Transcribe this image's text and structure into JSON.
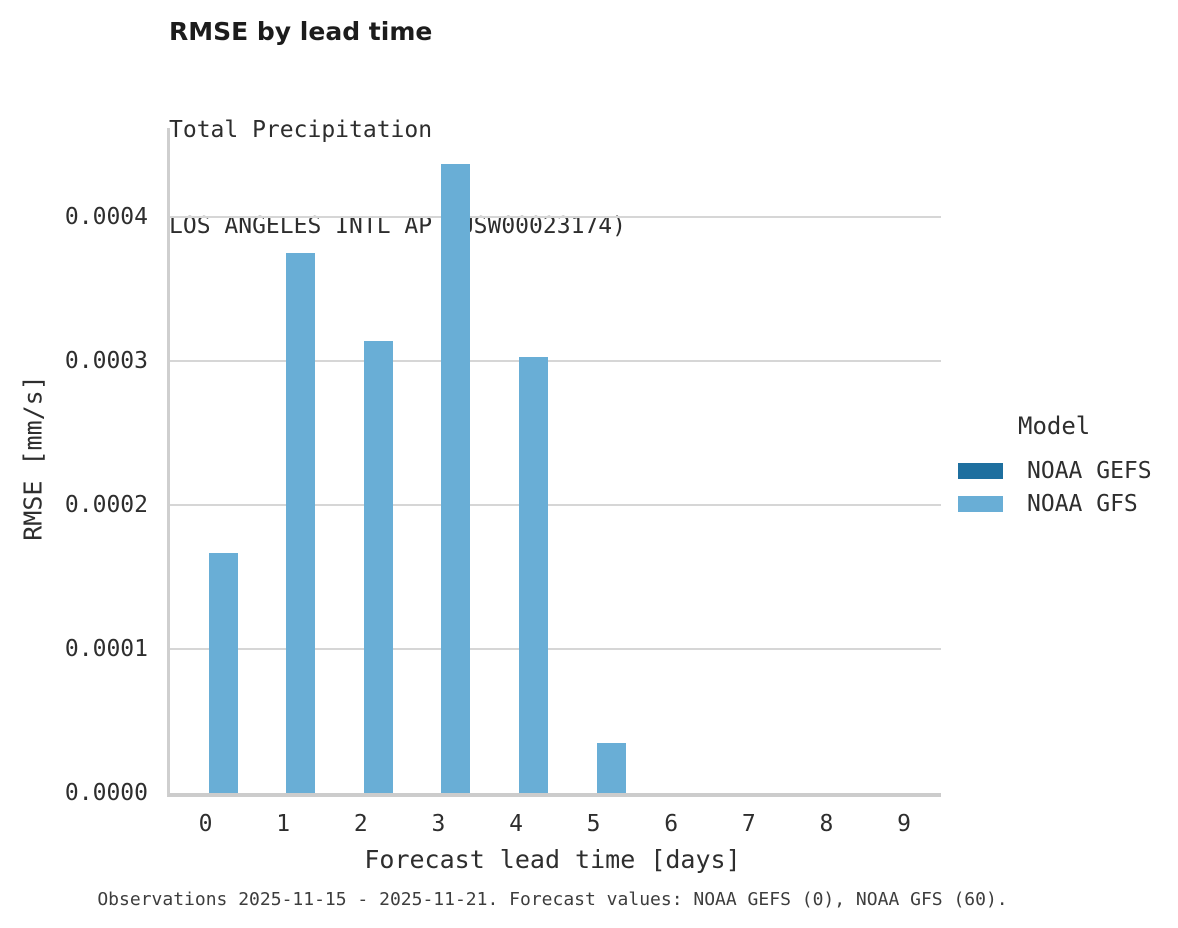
{
  "header": {
    "title": "RMSE by lead time",
    "subtitle_line1": "Total Precipitation",
    "subtitle_line2": "LOS ANGELES INTL AP (USW00023174)"
  },
  "chart_data": {
    "type": "bar",
    "categories": [
      "0",
      "1",
      "2",
      "3",
      "4",
      "5",
      "6",
      "7",
      "8",
      "9"
    ],
    "series": [
      {
        "name": "NOAA GEFS",
        "color": "#1e6f9f",
        "values": [
          0,
          0,
          0,
          0,
          0,
          0,
          0,
          0,
          0,
          0
        ]
      },
      {
        "name": "NOAA GFS",
        "color": "#69aed6",
        "values": [
          0.000167,
          0.000375,
          0.000314,
          0.000437,
          0.000303,
          3.5e-05,
          0,
          0,
          0,
          0
        ]
      }
    ],
    "title": "RMSE by lead time",
    "subtitle": "Total Precipitation | LOS ANGELES INTL AP (USW00023174)",
    "xlabel": "Forecast lead time [days]",
    "ylabel": "RMSE [mm/s]",
    "ylim": [
      0,
      0.000462
    ],
    "yticks": [
      0.0,
      0.0001,
      0.0002,
      0.0003,
      0.0004
    ],
    "ytick_labels": [
      "0.0000",
      "0.0001",
      "0.0002",
      "0.0003",
      "0.0004"
    ],
    "grid": "horizontal",
    "legend_position": "right"
  },
  "legend": {
    "title": "Model",
    "entries": [
      {
        "label": "NOAA GEFS",
        "color": "#1e6f9f"
      },
      {
        "label": "NOAA GFS",
        "color": "#69aed6"
      }
    ]
  },
  "colors": {
    "bar_light": "#69aed6",
    "bar_dark": "#1e6f9f",
    "gridline": "#d6d6d6",
    "axis_line": "#cccccc"
  },
  "caption": "Observations 2025-11-15 - 2025-11-21. Forecast values: NOAA GEFS (0), NOAA GFS (60)."
}
